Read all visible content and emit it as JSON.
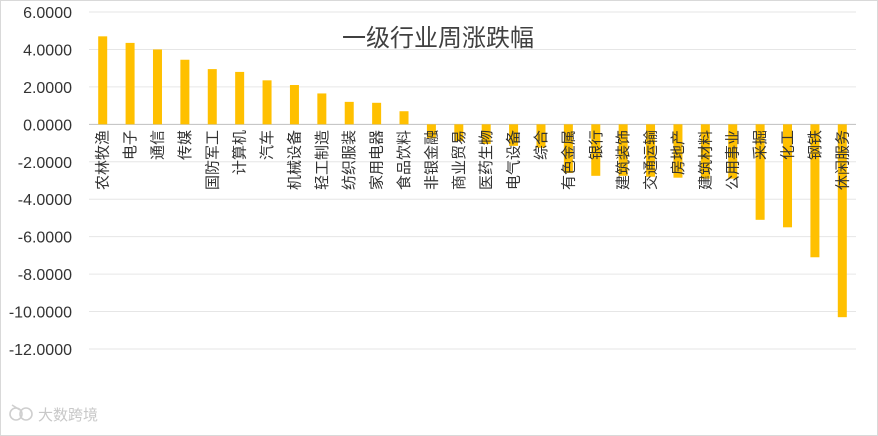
{
  "chart_data": {
    "type": "bar",
    "title": "一级行业周涨跌幅",
    "xlabel": "",
    "ylabel": "",
    "ylim": [
      -12,
      6
    ],
    "yticks": [
      "6.0000",
      "4.0000",
      "2.0000",
      "0.0000",
      "-2.0000",
      "-4.0000",
      "-6.0000",
      "-8.0000",
      "-10.0000",
      "-12.0000"
    ],
    "grid": true,
    "legend": "none",
    "color": "#ffc000",
    "categories": [
      "农林牧渔",
      "电子",
      "通信",
      "传媒",
      "国防军工",
      "计算机",
      "汽车",
      "机械设备",
      "轻工制造",
      "纺织服装",
      "家用电器",
      "食品饮料",
      "非银金融",
      "商业贸易",
      "医药生物",
      "电气设备",
      "综合",
      "有色金属",
      "银行",
      "建筑装饰",
      "交通运输",
      "房地产",
      "建筑材料",
      "公用事业",
      "采掘",
      "化工",
      "钢铁",
      "休闲服务"
    ],
    "values": [
      4.7,
      4.35,
      4.0,
      3.45,
      2.95,
      2.8,
      2.35,
      2.1,
      1.65,
      1.2,
      1.15,
      0.7,
      -0.75,
      -0.9,
      -1.05,
      -1.15,
      -1.25,
      -2.6,
      -2.75,
      -2.75,
      -2.8,
      -2.85,
      -2.9,
      -2.9,
      -5.1,
      -5.5,
      -7.1,
      -10.3
    ]
  },
  "watermark": {
    "logo_text": "大数跨境"
  }
}
